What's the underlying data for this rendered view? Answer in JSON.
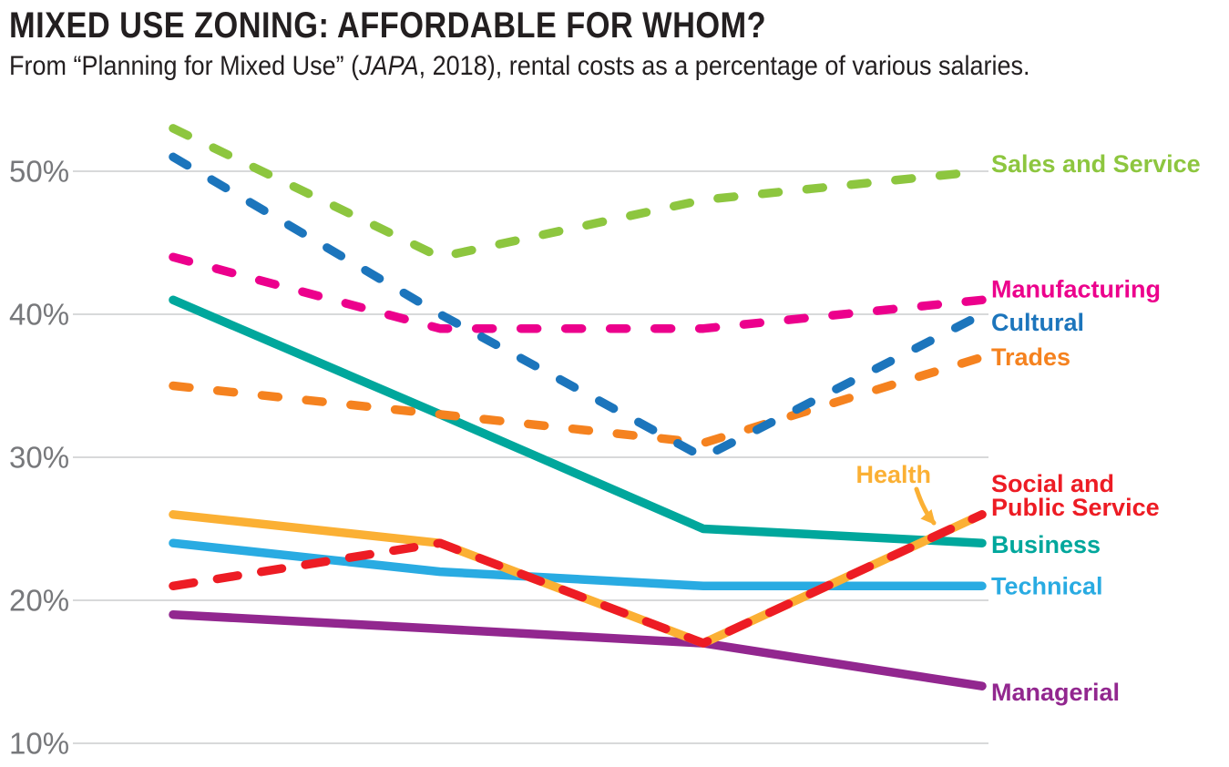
{
  "header": {
    "title": "MIXED USE ZONING: AFFORDABLE FOR WHOM?",
    "subtitle_parts": {
      "pre": "From “Planning for Mixed Use” (",
      "italic": "JAPA",
      "post": ", 2018), rental costs as a percentage of various salaries."
    }
  },
  "colors": {
    "background": "#ffffff",
    "title_text": "#231f20",
    "grid": "#d8d9da",
    "axis_text": "#77787b"
  },
  "chart_data": {
    "type": "line",
    "title": "MIXED USE ZONING: AFFORDABLE FOR WHOM?",
    "subtitle": "From “Planning for Mixed Use” (JAPA, 2018), rental costs as a percentage of various salaries.",
    "grid": true,
    "legend_position": "right-of-lines",
    "x_axis": {
      "labels_visible": false,
      "num_points": 4
    },
    "y_axis": {
      "unit": "%",
      "ticks": [
        "10%",
        "20%",
        "30%",
        "40%",
        "50%"
      ],
      "tick_values": [
        10,
        20,
        30,
        40,
        50
      ],
      "ylim": [
        8,
        56
      ]
    },
    "series": [
      {
        "id": "sales-and-service",
        "name": "Sales and Service",
        "color": "#8dc63f",
        "style": "dashed",
        "values": [
          53,
          44,
          48,
          50
        ]
      },
      {
        "id": "manufacturing",
        "name": "Manufacturing",
        "color": "#ec008c",
        "style": "dashed",
        "values": [
          44,
          39,
          39,
          41
        ]
      },
      {
        "id": "cultural",
        "name": "Cultural",
        "color": "#1c75bc",
        "style": "dashed",
        "values": [
          51,
          40,
          30,
          40
        ]
      },
      {
        "id": "trades",
        "name": "Trades",
        "color": "#f5821f",
        "style": "dashed",
        "values": [
          35,
          33,
          31,
          37
        ]
      },
      {
        "id": "health",
        "name": "Health",
        "color": "#fbb034",
        "style": "solid",
        "values": [
          26,
          24,
          17,
          26
        ],
        "label_as": "annotation"
      },
      {
        "id": "social-and-public-service",
        "name": "Social and Public Service",
        "label_lines": [
          "Social and",
          "Public Service"
        ],
        "color": "#ed1c24",
        "style": "dashed",
        "values": [
          21,
          24,
          17,
          26
        ]
      },
      {
        "id": "business",
        "name": "Business",
        "color": "#00a79c",
        "style": "solid",
        "values": [
          41,
          33,
          25,
          24
        ]
      },
      {
        "id": "technical",
        "name": "Technical",
        "color": "#29abe2",
        "style": "solid",
        "values": [
          24,
          22,
          21,
          21
        ]
      },
      {
        "id": "managerial",
        "name": "Managerial",
        "color": "#92278f",
        "style": "solid",
        "values": [
          19,
          18,
          17,
          14
        ]
      }
    ],
    "annotation": {
      "text": "Health",
      "series": "health"
    }
  }
}
